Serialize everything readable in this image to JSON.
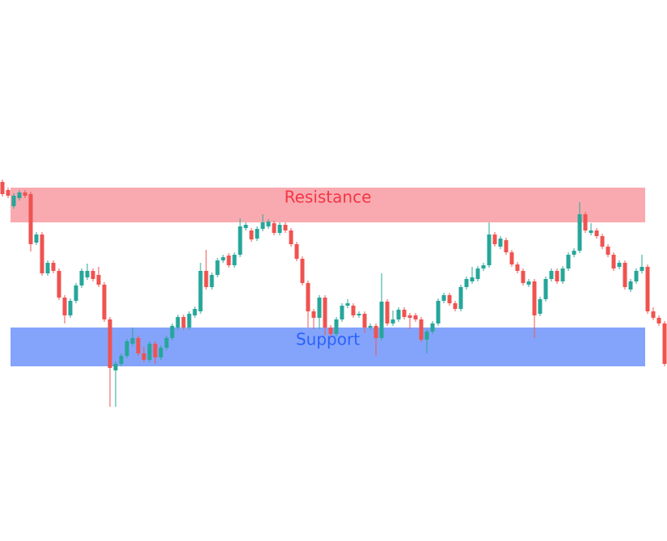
{
  "chart_data": {
    "type": "candlestick",
    "ylim": [
      0,
      669
    ],
    "up_color": "#26a69a",
    "down_color": "#ef5350",
    "open": [
      444,
      434,
      414,
      424,
      431,
      429,
      369,
      379,
      331,
      344,
      334,
      301,
      279,
      297,
      316,
      326,
      334,
      329,
      317,
      274,
      211,
      219,
      229,
      244,
      251,
      232,
      224,
      244,
      227,
      239,
      251,
      264,
      277,
      264,
      279,
      284,
      334,
      314,
      329,
      347,
      353,
      341,
      354,
      387,
      384,
      374,
      386,
      389,
      393,
      381,
      391,
      384,
      367,
      349,
      319,
      284,
      276,
      301,
      264,
      256,
      274,
      291,
      291,
      279,
      281,
      264,
      266,
      251,
      296,
      269,
      274,
      286,
      279,
      279,
      274,
      249,
      259,
      269,
      297,
      304,
      294,
      287,
      314,
      321,
      324,
      337,
      341,
      379,
      364,
      372,
      357,
      342,
      334,
      317,
      321,
      281,
      299,
      324,
      334,
      321,
      337,
      354,
      359,
      404,
      381,
      384,
      377,
      364,
      354,
      339,
      344,
      311,
      321,
      334,
      339,
      284,
      276,
      269,
      237
    ],
    "high": [
      447,
      437,
      430,
      434,
      434,
      432,
      382,
      382,
      347,
      347,
      337,
      304,
      300,
      319,
      337,
      343,
      337,
      339,
      320,
      277,
      222,
      232,
      250,
      264,
      254,
      240,
      247,
      247,
      242,
      254,
      269,
      280,
      280,
      284,
      290,
      344,
      360,
      332,
      350,
      354,
      356,
      357,
      399,
      394,
      387,
      389,
      404,
      398,
      396,
      394,
      394,
      387,
      370,
      352,
      322,
      287,
      304,
      304,
      267,
      277,
      294,
      299,
      294,
      284,
      284,
      269,
      269,
      331,
      299,
      285,
      289,
      289,
      282,
      282,
      277,
      262,
      272,
      300,
      307,
      307,
      297,
      317,
      327,
      339,
      340,
      344,
      394,
      382,
      377,
      375,
      360,
      345,
      337,
      324,
      324,
      302,
      327,
      337,
      337,
      340,
      357,
      362,
      419,
      407,
      393,
      387,
      380,
      367,
      357,
      347,
      347,
      324,
      337,
      354,
      342,
      289,
      279,
      272,
      270
    ],
    "low": [
      426,
      424,
      411,
      421,
      424,
      358,
      366,
      328,
      328,
      331,
      298,
      269,
      276,
      294,
      313,
      323,
      321,
      314,
      271,
      166,
      166,
      216,
      226,
      241,
      229,
      221,
      221,
      219,
      224,
      236,
      248,
      261,
      261,
      261,
      276,
      281,
      311,
      311,
      326,
      344,
      338,
      338,
      351,
      384,
      370,
      371,
      383,
      386,
      378,
      378,
      381,
      364,
      346,
      316,
      264,
      262,
      262,
      254,
      253,
      253,
      271,
      288,
      276,
      276,
      257,
      261,
      229,
      248,
      266,
      266,
      271,
      274,
      262,
      271,
      246,
      232,
      256,
      266,
      294,
      291,
      284,
      284,
      311,
      318,
      321,
      334,
      338,
      364,
      361,
      354,
      339,
      331,
      316,
      314,
      251,
      278,
      296,
      321,
      318,
      318,
      334,
      351,
      356,
      381,
      378,
      374,
      361,
      351,
      334,
      336,
      311,
      308,
      318,
      331,
      281,
      273,
      266,
      216,
      226
    ],
    "close": [
      429,
      427,
      427,
      431,
      427,
      367,
      379,
      331,
      344,
      334,
      301,
      279,
      297,
      316,
      334,
      334,
      324,
      317,
      274,
      214,
      219,
      229,
      247,
      251,
      232,
      224,
      244,
      227,
      239,
      251,
      266,
      277,
      264,
      281,
      287,
      334,
      314,
      329,
      347,
      351,
      341,
      354,
      389,
      391,
      373,
      386,
      394,
      395,
      381,
      391,
      384,
      367,
      349,
      319,
      284,
      276,
      301,
      264,
      256,
      274,
      291,
      294,
      279,
      281,
      264,
      266,
      251,
      296,
      269,
      274,
      286,
      277,
      276,
      274,
      249,
      259,
      269,
      297,
      304,
      294,
      287,
      314,
      324,
      326,
      337,
      341,
      379,
      367,
      374,
      357,
      342,
      334,
      319,
      321,
      279,
      299,
      324,
      334,
      321,
      337,
      354,
      359,
      404,
      384,
      384,
      377,
      364,
      354,
      337,
      344,
      314,
      321,
      334,
      339,
      284,
      276,
      269,
      219,
      249
    ],
    "zones": [
      {
        "label": "Resistance",
        "low": 394,
        "high": 437,
        "color": "#f9aab0",
        "text_color": "#f23645"
      },
      {
        "label": "Support",
        "low": 216,
        "high": 264,
        "color": "#84a4fb",
        "text_color": "#2962ff"
      }
    ]
  }
}
